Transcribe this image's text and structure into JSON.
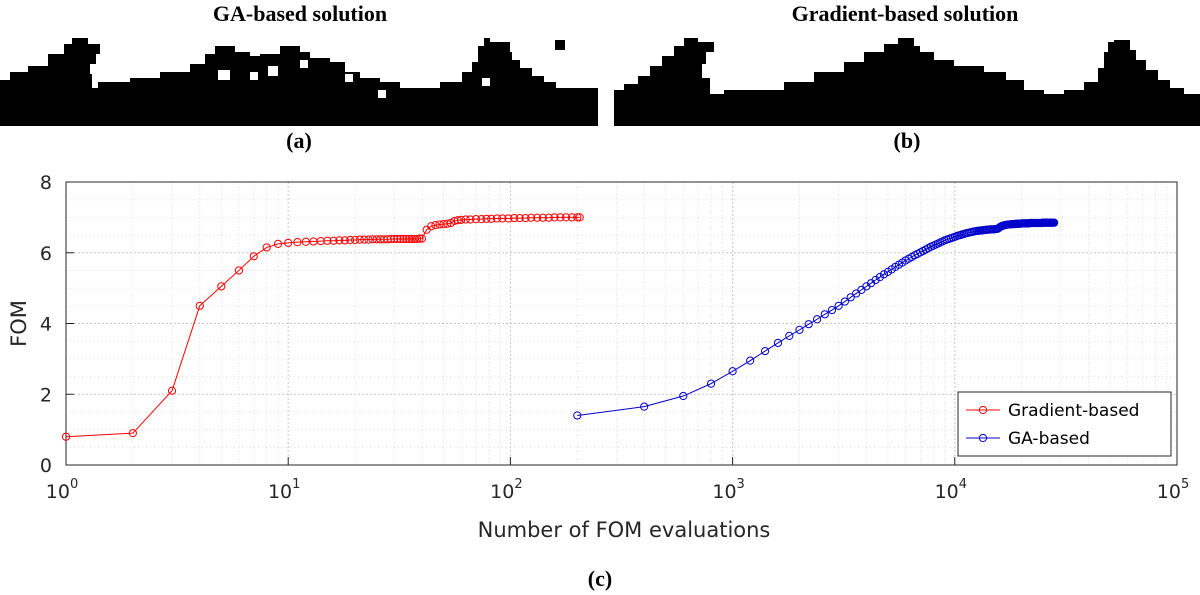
{
  "figure_a": {
    "title": "GA-based solution",
    "caption": "(a)"
  },
  "figure_b": {
    "title": "Gradient-based solution",
    "caption": "(b)"
  },
  "figure_c": {
    "caption": "(c)"
  },
  "colors": {
    "gradient_series": "#ff0000",
    "ga_series": "#0000cc",
    "axes": "#262626",
    "grid": "#dcdcdc",
    "pattern": "#000000"
  },
  "chart_data": {
    "type": "line",
    "title": "",
    "xlabel": "Number of FOM evaluations",
    "ylabel": "FOM",
    "xscale": "log",
    "xlim": [
      1,
      100000
    ],
    "ylim": [
      0,
      8
    ],
    "x_ticks": [
      {
        "base": "10",
        "exp": "0"
      },
      {
        "base": "10",
        "exp": "1"
      },
      {
        "base": "10",
        "exp": "2"
      },
      {
        "base": "10",
        "exp": "3"
      },
      {
        "base": "10",
        "exp": "4"
      },
      {
        "base": "10",
        "exp": "5"
      }
    ],
    "y_ticks": [
      "0",
      "2",
      "4",
      "6",
      "8"
    ],
    "grid": true,
    "minor_grid": true,
    "legend_position": "bottom-right",
    "series": [
      {
        "name": "Gradient-based",
        "color": "#ff0000",
        "marker": "circle",
        "x": [
          1,
          2,
          3,
          4,
          5,
          6,
          7,
          8,
          9,
          10,
          11,
          12,
          13,
          14,
          15,
          16,
          17,
          18,
          19,
          20,
          21,
          22,
          23,
          24,
          25,
          26,
          27,
          28,
          29,
          30,
          31,
          32,
          33,
          34,
          35,
          36,
          37,
          38,
          39,
          40,
          42,
          44,
          46,
          48,
          50,
          52,
          54,
          56,
          58,
          60,
          63,
          66,
          70,
          74,
          78,
          82,
          87,
          92,
          98,
          104,
          110,
          117,
          124,
          132,
          140,
          149,
          158,
          168,
          178,
          189,
          200,
          205
        ],
        "y": [
          0.8,
          0.9,
          2.1,
          4.5,
          5.05,
          5.5,
          5.9,
          6.15,
          6.25,
          6.28,
          6.3,
          6.31,
          6.32,
          6.33,
          6.34,
          6.34,
          6.35,
          6.35,
          6.36,
          6.36,
          6.37,
          6.37,
          6.37,
          6.38,
          6.38,
          6.38,
          6.38,
          6.38,
          6.39,
          6.39,
          6.39,
          6.39,
          6.39,
          6.39,
          6.39,
          6.39,
          6.39,
          6.39,
          6.4,
          6.4,
          6.65,
          6.75,
          6.78,
          6.8,
          6.81,
          6.82,
          6.84,
          6.9,
          6.92,
          6.93,
          6.94,
          6.94,
          6.95,
          6.95,
          6.96,
          6.96,
          6.97,
          6.97,
          6.97,
          6.98,
          6.98,
          6.98,
          6.99,
          6.99,
          6.99,
          6.99,
          7.0,
          7.0,
          7.0,
          7.0,
          7.0,
          7.0
        ]
      },
      {
        "name": "GA-based",
        "color": "#0000cc",
        "marker": "circle",
        "x": [
          200,
          400,
          600,
          800,
          1000,
          1200,
          1400,
          1600,
          1800,
          2000,
          2200,
          2400,
          2600,
          2800,
          3000,
          3200,
          3400,
          3600,
          3800,
          4000,
          4200,
          4400,
          4600,
          4800,
          5000,
          5200,
          5400,
          5600,
          5800,
          6000,
          6200,
          6400,
          6600,
          6800,
          7000,
          7200,
          7400,
          7600,
          7800,
          8000,
          8200,
          8400,
          8600,
          8800,
          9000,
          9200,
          9400,
          9600,
          9800,
          10000,
          10200,
          10400,
          10600,
          10800,
          11000,
          11200,
          11400,
          11600,
          11800,
          12000,
          12200,
          12400,
          12600,
          12800,
          13000,
          13200,
          13400,
          13600,
          13800,
          14000,
          14200,
          14400,
          14600,
          14800,
          15000,
          15200,
          15400,
          15600,
          15800,
          16000,
          16200,
          16400,
          16600,
          16800,
          17000,
          17200,
          17400,
          17600,
          17800,
          18000,
          18200,
          18400,
          18600,
          18800,
          19000,
          19200,
          19400,
          19600,
          19800,
          20000,
          20200,
          20400,
          20600,
          20800,
          21000,
          21200,
          21400,
          21600,
          21800,
          22000,
          22200,
          22400,
          22600,
          22800,
          23000,
          23200,
          23400,
          23600,
          23800,
          24000,
          24200,
          24400,
          24600,
          24800,
          25000,
          25200,
          25400,
          25600,
          25800,
          26000,
          26200,
          26400,
          26600,
          26800,
          27000,
          27200,
          27400,
          27600,
          27800,
          28000
        ],
        "y": [
          1.4,
          1.65,
          1.95,
          2.3,
          2.65,
          2.95,
          3.22,
          3.45,
          3.65,
          3.82,
          3.98,
          4.12,
          4.26,
          4.38,
          4.5,
          4.62,
          4.74,
          4.85,
          4.95,
          5.05,
          5.14,
          5.23,
          5.31,
          5.39,
          5.46,
          5.53,
          5.6,
          5.66,
          5.72,
          5.78,
          5.83,
          5.88,
          5.93,
          5.97,
          6.01,
          6.05,
          6.09,
          6.13,
          6.17,
          6.2,
          6.23,
          6.26,
          6.29,
          6.32,
          6.35,
          6.37,
          6.39,
          6.41,
          6.43,
          6.45,
          6.47,
          6.49,
          6.5,
          6.52,
          6.53,
          6.55,
          6.56,
          6.57,
          6.58,
          6.59,
          6.6,
          6.61,
          6.62,
          6.62,
          6.63,
          6.63,
          6.64,
          6.64,
          6.65,
          6.65,
          6.65,
          6.66,
          6.66,
          6.66,
          6.66,
          6.67,
          6.67,
          6.68,
          6.7,
          6.73,
          6.75,
          6.76,
          6.77,
          6.78,
          6.79,
          6.79,
          6.8,
          6.8,
          6.8,
          6.81,
          6.81,
          6.81,
          6.81,
          6.82,
          6.82,
          6.82,
          6.82,
          6.82,
          6.82,
          6.83,
          6.83,
          6.83,
          6.83,
          6.83,
          6.83,
          6.83,
          6.83,
          6.83,
          6.84,
          6.84,
          6.84,
          6.84,
          6.84,
          6.84,
          6.84,
          6.84,
          6.84,
          6.84,
          6.84,
          6.84,
          6.84,
          6.84,
          6.84,
          6.85,
          6.85,
          6.85,
          6.85,
          6.85,
          6.85,
          6.85,
          6.85,
          6.85,
          6.85,
          6.85,
          6.85,
          6.85,
          6.85,
          6.85,
          6.85,
          6.85
        ]
      }
    ]
  }
}
